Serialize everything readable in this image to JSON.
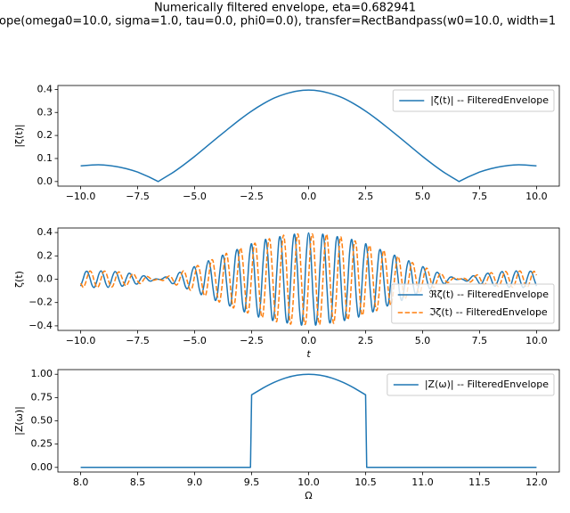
{
  "title": "Numerically filtered envelope, eta=0.682941",
  "subtitle": "ope(omega0=10.0, sigma=1.0, tau=0.0, phi0=0.0), transfer=RectBandpass(w0=10.0, width=1",
  "chart_data": [
    {
      "type": "line",
      "y_label": "|ζ(t)|",
      "legend": "upper right",
      "xlim": [
        -11,
        11
      ],
      "ylim": [
        -0.02,
        0.417
      ],
      "xticks": [
        {
          "value": -10,
          "label": "−10.0"
        },
        {
          "value": -7.5,
          "label": "−7.5"
        },
        {
          "value": -5,
          "label": "−5.0"
        },
        {
          "value": -2.5,
          "label": "−2.5"
        },
        {
          "value": 0,
          "label": "0.0"
        },
        2.5,
        {
          "value": 5,
          "label": "5.0"
        },
        7.5,
        {
          "value": 10,
          "label": "10.0"
        }
      ],
      "yticks": [
        {
          "value": 0,
          "label": "0.0"
        },
        0.1,
        0.2,
        0.3,
        0.4
      ],
      "x": [
        -10,
        -9.5,
        -9,
        -8.5,
        -8,
        -7.5,
        -7,
        -6.6,
        -6.5,
        -6,
        -5.5,
        -5,
        -4.5,
        -4,
        -3.5,
        -3,
        -2.5,
        -2,
        -1.5,
        -1,
        -0.5,
        0,
        0.5,
        1,
        1.5,
        2,
        2.5,
        3,
        3.5,
        4,
        4.5,
        5,
        5.5,
        6,
        6.5,
        6.6,
        7,
        7.5,
        8,
        8.5,
        9,
        9.5,
        10
      ],
      "series": [
        {
          "name": "|ζ(t)| -- FilteredEnvelope",
          "color": "#1f77b4",
          "dash": "solid",
          "values": [
            0.068,
            0.072,
            0.072,
            0.066,
            0.056,
            0.041,
            0.02,
            0,
            0.006,
            0.036,
            0.071,
            0.109,
            0.15,
            0.191,
            0.231,
            0.27,
            0.306,
            0.337,
            0.363,
            0.381,
            0.393,
            0.397,
            0.393,
            0.381,
            0.363,
            0.337,
            0.306,
            0.27,
            0.231,
            0.191,
            0.15,
            0.109,
            0.071,
            0.036,
            0.006,
            0,
            0.02,
            0.041,
            0.056,
            0.066,
            0.072,
            0.072,
            0.068
          ]
        }
      ]
    },
    {
      "type": "line",
      "x_label": "t",
      "y_label": "ζ(t)",
      "legend": "lower right",
      "xlim": [
        -11,
        11
      ],
      "ylim": [
        -0.439,
        0.439
      ],
      "xticks": [
        {
          "value": -10,
          "label": "−10.0"
        },
        {
          "value": -7.5,
          "label": "−7.5"
        },
        {
          "value": -5,
          "label": "−5.0"
        },
        {
          "value": -2.5,
          "label": "−2.5"
        },
        {
          "value": 0,
          "label": "0.0"
        },
        2.5,
        {
          "value": 5,
          "label": "5.0"
        },
        7.5,
        {
          "value": 10,
          "label": "10.0"
        }
      ],
      "yticks": [
        {
          "value": -0.4,
          "label": "−0.4"
        },
        {
          "value": -0.2,
          "label": "−0.2"
        },
        {
          "value": 0,
          "label": "0.0"
        },
        0.2,
        0.4
      ],
      "x": [
        -10,
        -9.9,
        -9.8,
        -9.7,
        -9.6,
        -9.5,
        -9.4,
        -9.3,
        -9.2,
        -9.1,
        -9,
        -8.9,
        -8.8,
        -8.7,
        -8.6,
        -8.5,
        -8.4,
        -8.3,
        -8.2,
        -8.1,
        -8,
        -7.9,
        -7.8,
        -7.7,
        -7.6,
        -7.5,
        -7.4,
        -7.3,
        -7.2,
        -7.1,
        -7,
        -6.9,
        -6.8,
        -6.7,
        -6.6,
        -6.5,
        -6.4,
        -6.3,
        -6.2,
        -6.1,
        -6,
        -5.9,
        -5.8,
        -5.7,
        -5.6,
        -5.5,
        -5.4,
        -5.3,
        -5.2,
        -5.1,
        -5,
        -4.9,
        -4.8,
        -4.7,
        -4.6,
        -4.5,
        -4.4,
        -4.3,
        -4.2,
        -4.1,
        -4,
        -3.9,
        -3.8,
        -3.7,
        -3.6,
        -3.5,
        -3.4,
        -3.3,
        -3.2,
        -3.1,
        -3,
        -2.9,
        -2.8,
        -2.7,
        -2.6,
        -2.5,
        -2.4,
        -2.3,
        -2.2,
        -2.1,
        -2,
        -1.9,
        -1.8,
        -1.7,
        -1.6,
        -1.5,
        -1.4,
        -1.3,
        -1.2,
        -1.1,
        -1,
        -0.9,
        -0.8,
        -0.7,
        -0.6,
        -0.5,
        -0.4,
        -0.3,
        -0.2,
        -0.1,
        0,
        0.1,
        0.2,
        0.3,
        0.4,
        0.5,
        0.6,
        0.7,
        0.8,
        0.9,
        1,
        1.1,
        1.2,
        1.3,
        1.4,
        1.5,
        1.6,
        1.7,
        1.8,
        1.9,
        2,
        2.1,
        2.2,
        2.3,
        2.4,
        2.5,
        2.6,
        2.7,
        2.8,
        2.9,
        3,
        3.1,
        3.2,
        3.3,
        3.4,
        3.5,
        3.6,
        3.7,
        3.8,
        3.9,
        4,
        4.1,
        4.2,
        4.3,
        4.4,
        4.5,
        4.6,
        4.7,
        4.8,
        4.9,
        5,
        5.1,
        5.2,
        5.3,
        5.4,
        5.5,
        5.6,
        5.7,
        5.8,
        5.9,
        6,
        6.1,
        6.2,
        6.3,
        6.4,
        6.5,
        6.6,
        6.7,
        6.8,
        6.9,
        7,
        7.1,
        7.2,
        7.3,
        7.4,
        7.5,
        7.6,
        7.7,
        7.8,
        7.9,
        8,
        8.1,
        8.2,
        8.3,
        8.4,
        8.5,
        8.6,
        8.7,
        8.8,
        8.9,
        9,
        9.1,
        9.2,
        9.3,
        9.4,
        9.5,
        9.6,
        9.7,
        9.8,
        9.9,
        10
      ],
      "series": [
        {
          "name": "ℜζ(t) -- FilteredEnvelope",
          "color": "#1f77b4",
          "dash": "solid",
          "values": [
            -0.059,
            -0.003,
            0.057,
            0.065,
            0.013,
            -0.052,
            -0.07,
            -0.023,
            0.045,
            0.071,
            0.032,
            -0.036,
            -0.07,
            -0.039,
            0.026,
            0.065,
            0.044,
            -0.016,
            -0.058,
            -0.045,
            0.006,
            0.048,
            0.043,
            0.002,
            -0.037,
            -0.038,
            -0.006,
            0.024,
            0.028,
            0.008,
            -0.013,
            -0.015,
            -0.004,
            0.003,
            0,
            -0.003,
            0.005,
            0.018,
            0.016,
            -0.008,
            -0.035,
            -0.033,
            0.006,
            0.051,
            0.055,
            0.002,
            -0.065,
            -0.079,
            -0.015,
            0.075,
            0.106,
            0.035,
            -0.08,
            -0.132,
            -0.061,
            0.079,
            0.158,
            0.092,
            -0.07,
            -0.18,
            -0.127,
            0.053,
            0.198,
            0.165,
            -0.029,
            -0.209,
            -0.203,
            -0.003,
            0.213,
            0.24,
            0.042,
            -0.208,
            -0.274,
            -0.085,
            0.193,
            0.303,
            0.133,
            -0.17,
            -0.325,
            -0.181,
            0.138,
            0.339,
            0.23,
            -0.097,
            -0.343,
            -0.275,
            0.05,
            0.337,
            0.316,
            0.002,
            -0.32,
            -0.35,
            -0.056,
            0.294,
            0.376,
            0.112,
            -0.258,
            -0.392,
            -0.165,
            0.214,
            0.397,
            0.214,
            -0.165,
            -0.392,
            -0.258,
            0.112,
            0.376,
            0.294,
            -0.056,
            -0.35,
            -0.32,
            0.002,
            0.316,
            0.337,
            0.05,
            -0.275,
            -0.343,
            -0.097,
            0.23,
            0.339,
            0.138,
            -0.181,
            -0.325,
            -0.17,
            0.133,
            0.303,
            0.193,
            -0.085,
            -0.274,
            -0.208,
            0.042,
            0.24,
            0.213,
            -0.003,
            -0.203,
            -0.209,
            -0.029,
            0.165,
            0.198,
            0.053,
            -0.127,
            -0.18,
            -0.07,
            0.092,
            0.158,
            0.079,
            -0.061,
            -0.132,
            -0.08,
            0.035,
            0.106,
            0.075,
            -0.015,
            -0.079,
            -0.065,
            0.002,
            0.055,
            0.051,
            0.006,
            -0.033,
            -0.035,
            -0.008,
            0.016,
            0.018,
            0.005,
            -0.003,
            0,
            0.003,
            -0.004,
            -0.015,
            -0.013,
            0.008,
            0.028,
            0.024,
            -0.006,
            -0.038,
            -0.037,
            0.002,
            0.043,
            0.048,
            0.006,
            -0.045,
            -0.058,
            -0.016,
            0.044,
            0.065,
            0.026,
            -0.039,
            -0.07,
            -0.036,
            0.032,
            0.071,
            0.045,
            -0.023,
            -0.07,
            -0.052,
            0.013,
            0.065,
            0.057,
            -0.003,
            -0.059
          ]
        },
        {
          "name": "ℑζ(t) -- FilteredEnvelope",
          "color": "#ff7f0e",
          "dash": "dashed",
          "values": [
            -0.034,
            -0.069,
            -0.04,
            0.027,
            0.07,
            0.049,
            -0.018,
            -0.068,
            -0.056,
            0.008,
            0.064,
            0.061,
            0.003,
            -0.056,
            -0.062,
            -0.012,
            0.047,
            0.061,
            0.019,
            -0.037,
            -0.056,
            -0.024,
            0.026,
            0.047,
            0.025,
            -0.016,
            -0.037,
            -0.022,
            0.007,
            0.024,
            0.016,
            -0.002,
            -0.009,
            -0.004,
            0,
            -0.005,
            -0.011,
            -0.003,
            0.018,
            0.029,
            0.011,
            -0.028,
            -0.05,
            -0.025,
            0.033,
            0.071,
            0.044,
            -0.034,
            -0.093,
            -0.068,
            0.029,
            0.112,
            0.096,
            -0.017,
            -0.128,
            -0.127,
            -0.003,
            0.138,
            0.16,
            0.029,
            -0.142,
            -0.192,
            -0.061,
            0.138,
            0.221,
            0.099,
            -0.127,
            -0.247,
            -0.14,
            0.106,
            0.267,
            0.184,
            -0.077,
            -0.279,
            -0.228,
            0.041,
            0.283,
            0.27,
            0.003,
            -0.277,
            -0.308,
            -0.051,
            0.261,
            0.339,
            0.103,
            -0.236,
            -0.363,
            -0.156,
            0.201,
            0.378,
            0.208,
            -0.158,
            -0.383,
            -0.256,
            0.109,
            0.377,
            0.299,
            -0.056,
            -0.36,
            -0.334,
            0,
            0.334,
            0.36,
            0.056,
            -0.299,
            -0.377,
            -0.109,
            0.256,
            0.383,
            0.158,
            -0.208,
            -0.378,
            -0.201,
            0.156,
            0.363,
            0.236,
            -0.103,
            -0.339,
            -0.261,
            0.051,
            0.308,
            0.277,
            -0.003,
            -0.27,
            -0.283,
            -0.041,
            0.228,
            0.279,
            0.077,
            -0.184,
            -0.267,
            -0.106,
            0.14,
            0.247,
            0.127,
            -0.099,
            -0.221,
            -0.138,
            0.061,
            0.192,
            0.142,
            -0.029,
            -0.16,
            -0.138,
            0.003,
            0.127,
            0.128,
            0.017,
            -0.096,
            -0.112,
            -0.029,
            0.068,
            0.093,
            0.034,
            -0.044,
            -0.071,
            -0.033,
            0.025,
            0.05,
            0.028,
            -0.011,
            -0.029,
            -0.018,
            0.003,
            0.011,
            0.005,
            0,
            0.004,
            0.009,
            0.002,
            -0.016,
            -0.024,
            -0.007,
            0.022,
            0.037,
            0.016,
            -0.025,
            -0.047,
            -0.026,
            0.024,
            0.056,
            0.037,
            -0.019,
            -0.061,
            -0.047,
            0.012,
            0.062,
            0.056,
            -0.003,
            -0.061,
            -0.064,
            -0.008,
            0.056,
            0.068,
            0.018,
            -0.049,
            -0.07,
            -0.027,
            0.04,
            0.069,
            0.034
          ]
        }
      ]
    },
    {
      "type": "line",
      "x_label": "Ω",
      "y_label": "|Z(ω)|",
      "legend": "upper right",
      "xlim": [
        7.8,
        12.2
      ],
      "ylim": [
        -0.05,
        1.05
      ],
      "xticks": [
        {
          "value": 8,
          "label": "8.0"
        },
        8.5,
        {
          "value": 9,
          "label": "9.0"
        },
        9.5,
        {
          "value": 10,
          "label": "10.0"
        },
        10.5,
        {
          "value": 11,
          "label": "11.0"
        },
        11.5,
        {
          "value": 12,
          "label": "12.0"
        }
      ],
      "yticks": [
        {
          "value": 0,
          "label": "0.00"
        },
        0.25,
        {
          "value": 0.5,
          "label": "0.50"
        },
        0.75,
        {
          "value": 1,
          "label": "1.00"
        }
      ],
      "x": [
        8,
        9.49,
        9.5,
        9.6,
        9.7,
        9.8,
        9.9,
        10,
        10.1,
        10.2,
        10.3,
        10.4,
        10.5,
        10.51,
        12
      ],
      "series": [
        {
          "name": "|Z(ω)| -- FilteredEnvelope",
          "color": "#1f77b4",
          "dash": "solid",
          "values": [
            0,
            0,
            0.779,
            0.852,
            0.914,
            0.961,
            0.99,
            1,
            0.99,
            0.961,
            0.914,
            0.852,
            0.779,
            0,
            0
          ]
        }
      ]
    }
  ]
}
